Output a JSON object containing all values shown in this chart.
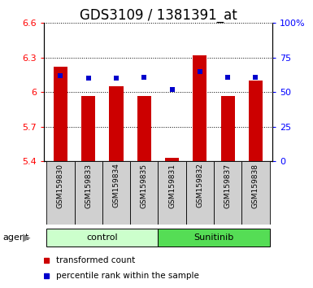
{
  "title": "GDS3109 / 1381391_at",
  "samples": [
    "GSM159830",
    "GSM159833",
    "GSM159834",
    "GSM159835",
    "GSM159831",
    "GSM159832",
    "GSM159837",
    "GSM159838"
  ],
  "red_values": [
    6.22,
    5.97,
    6.05,
    5.97,
    5.43,
    6.32,
    5.97,
    6.1
  ],
  "blue_values": [
    62,
    60,
    60,
    61,
    52,
    65,
    61,
    61
  ],
  "groups": [
    {
      "label": "control",
      "indices": [
        0,
        1,
        2,
        3
      ],
      "color": "#ccffcc"
    },
    {
      "label": "Sunitinib",
      "indices": [
        4,
        5,
        6,
        7
      ],
      "color": "#55dd55"
    }
  ],
  "ylim_left": [
    5.4,
    6.6
  ],
  "ylim_right": [
    0,
    100
  ],
  "yticks_left": [
    5.4,
    5.7,
    6.0,
    6.3,
    6.6
  ],
  "ytick_labels_left": [
    "5.4",
    "5.7",
    "6",
    "6.3",
    "6.6"
  ],
  "yticks_right": [
    0,
    25,
    50,
    75,
    100
  ],
  "ytick_labels_right": [
    "0",
    "25",
    "50",
    "75",
    "100%"
  ],
  "bar_color": "#cc0000",
  "marker_color": "#0000cc",
  "bar_bottom": 5.4,
  "figsize": [
    3.85,
    3.54
  ],
  "dpi": 100,
  "title_fontsize": 12,
  "tick_label_fontsize": 8,
  "sample_fontsize": 6.5,
  "agent_label": "agent",
  "legend_items": [
    {
      "color": "#cc0000",
      "label": "transformed count"
    },
    {
      "color": "#0000cc",
      "label": "percentile rank within the sample"
    }
  ]
}
